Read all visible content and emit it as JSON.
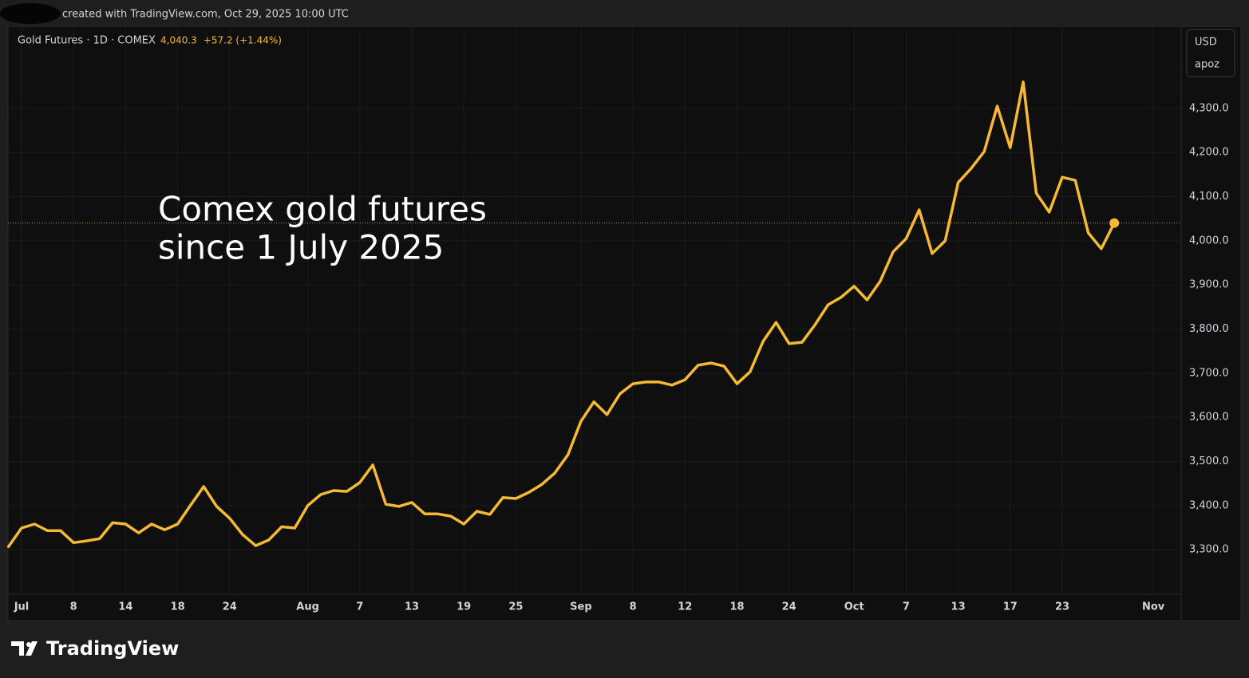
{
  "header": {
    "created": "created with TradingView.com, Oct 29, 2025 10:00 UTC",
    "logo": "TradingView"
  },
  "chart_data": {
    "type": "line",
    "symbol": "Gold Futures · 1D · COMEX",
    "price": "4,040.3",
    "change": "+57.2 (+1.44%)",
    "currency": "USD",
    "unit": "apoz",
    "annotation": [
      "Comex gold futures",
      "since 1 July 2025"
    ],
    "categories": [
      null,
      "Jul",
      null,
      null,
      null,
      "8",
      null,
      null,
      null,
      "14",
      null,
      null,
      null,
      "18",
      null,
      null,
      null,
      "24",
      null,
      null,
      null,
      null,
      null,
      "Aug",
      null,
      null,
      null,
      "7",
      null,
      null,
      null,
      "13",
      null,
      null,
      null,
      "19",
      null,
      null,
      null,
      "25",
      null,
      null,
      null,
      null,
      "Sep",
      null,
      null,
      null,
      "8",
      null,
      null,
      null,
      "12",
      null,
      null,
      null,
      "18",
      null,
      null,
      null,
      "24",
      null,
      null,
      null,
      null,
      "Oct",
      null,
      null,
      null,
      "7",
      null,
      null,
      null,
      "13",
      null,
      null,
      null,
      "17",
      null,
      null,
      null,
      "23",
      null,
      null,
      null,
      null,
      null,
      null,
      "Nov"
    ],
    "series": [
      {
        "name": "Gold Futures",
        "color": "#f5b935",
        "values": [
          3307,
          3349,
          3358,
          3343,
          3343,
          3316,
          3320,
          3325,
          3361,
          3358,
          3338,
          3358,
          3345,
          3358,
          3401,
          3443,
          3398,
          3371,
          3334,
          3309,
          3322,
          3352,
          3349,
          3400,
          3425,
          3434,
          3432,
          3452,
          3492,
          3403,
          3398,
          3407,
          3381,
          3381,
          3376,
          3358,
          3387,
          3380,
          3418,
          3416,
          3430,
          3448,
          3474,
          3515,
          3591,
          3635,
          3606,
          3653,
          3676,
          3680,
          3680,
          3673,
          3685,
          3718,
          3723,
          3716,
          3676,
          3703,
          3772,
          3815,
          3767,
          3770,
          3810,
          3855,
          3872,
          3897,
          3866,
          3908,
          3975,
          4005,
          4070,
          3971,
          4000,
          4132,
          4164,
          4202,
          4305,
          4211,
          4360,
          4108,
          4065,
          4144,
          4137,
          4018,
          3982,
          4040.3,
          null,
          null,
          null
        ]
      }
    ],
    "ylim": [
      3199,
      4486
    ],
    "yticks": [
      {
        "value": 3300,
        "label": "3,300.0"
      },
      {
        "value": 3400,
        "label": "3,400.0"
      },
      {
        "value": 3500,
        "label": "3,500.0"
      },
      {
        "value": 3600,
        "label": "3,600.0"
      },
      {
        "value": 3700,
        "label": "3,700.0"
      },
      {
        "value": 3800,
        "label": "3,800.0"
      },
      {
        "value": 3900,
        "label": "3,900.0"
      },
      {
        "value": 4000,
        "label": "4,000.0"
      },
      {
        "value": 4100,
        "label": "4,100.0"
      },
      {
        "value": 4200,
        "label": "4,200.0"
      },
      {
        "value": 4300,
        "label": "4,300.0"
      }
    ],
    "grid": true
  }
}
